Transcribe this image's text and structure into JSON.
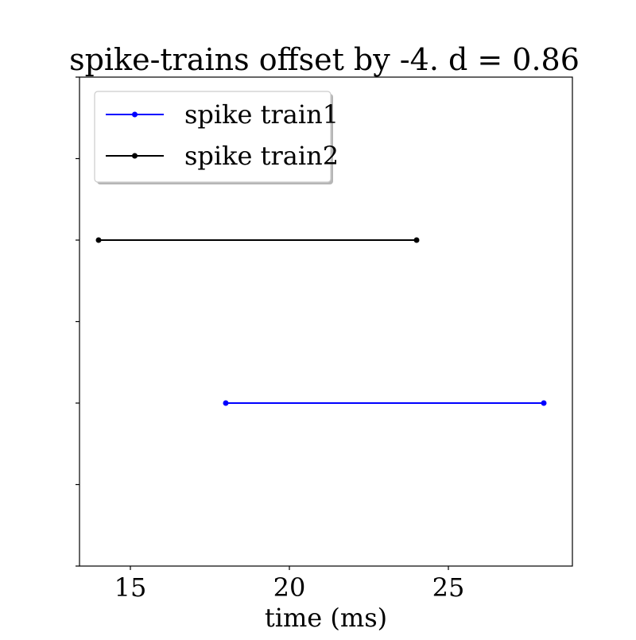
{
  "chart_data": {
    "type": "line",
    "title": "spike-trains offset by -4. d = 0.86",
    "xlabel": "time (ms)",
    "ylabel": "",
    "xlim": [
      13.4,
      28.9
    ],
    "ylim": [
      -0.5,
      2.5
    ],
    "x_ticks": [
      15,
      20,
      25
    ],
    "x_tick_labels": [
      "15",
      "20",
      "25"
    ],
    "y_ticks": [
      -0.5,
      0,
      0.5,
      1,
      1.5,
      2,
      2.5
    ],
    "y_tick_labels_visible": false,
    "grid": false,
    "legend_position": "top-left",
    "series": [
      {
        "name": "spike train1",
        "color": "#0000ff",
        "x": [
          18,
          28
        ],
        "y": [
          0.5,
          0.5
        ]
      },
      {
        "name": "spike train2",
        "color": "#000000",
        "x": [
          14,
          24
        ],
        "y": [
          1.5,
          1.5
        ]
      }
    ]
  }
}
